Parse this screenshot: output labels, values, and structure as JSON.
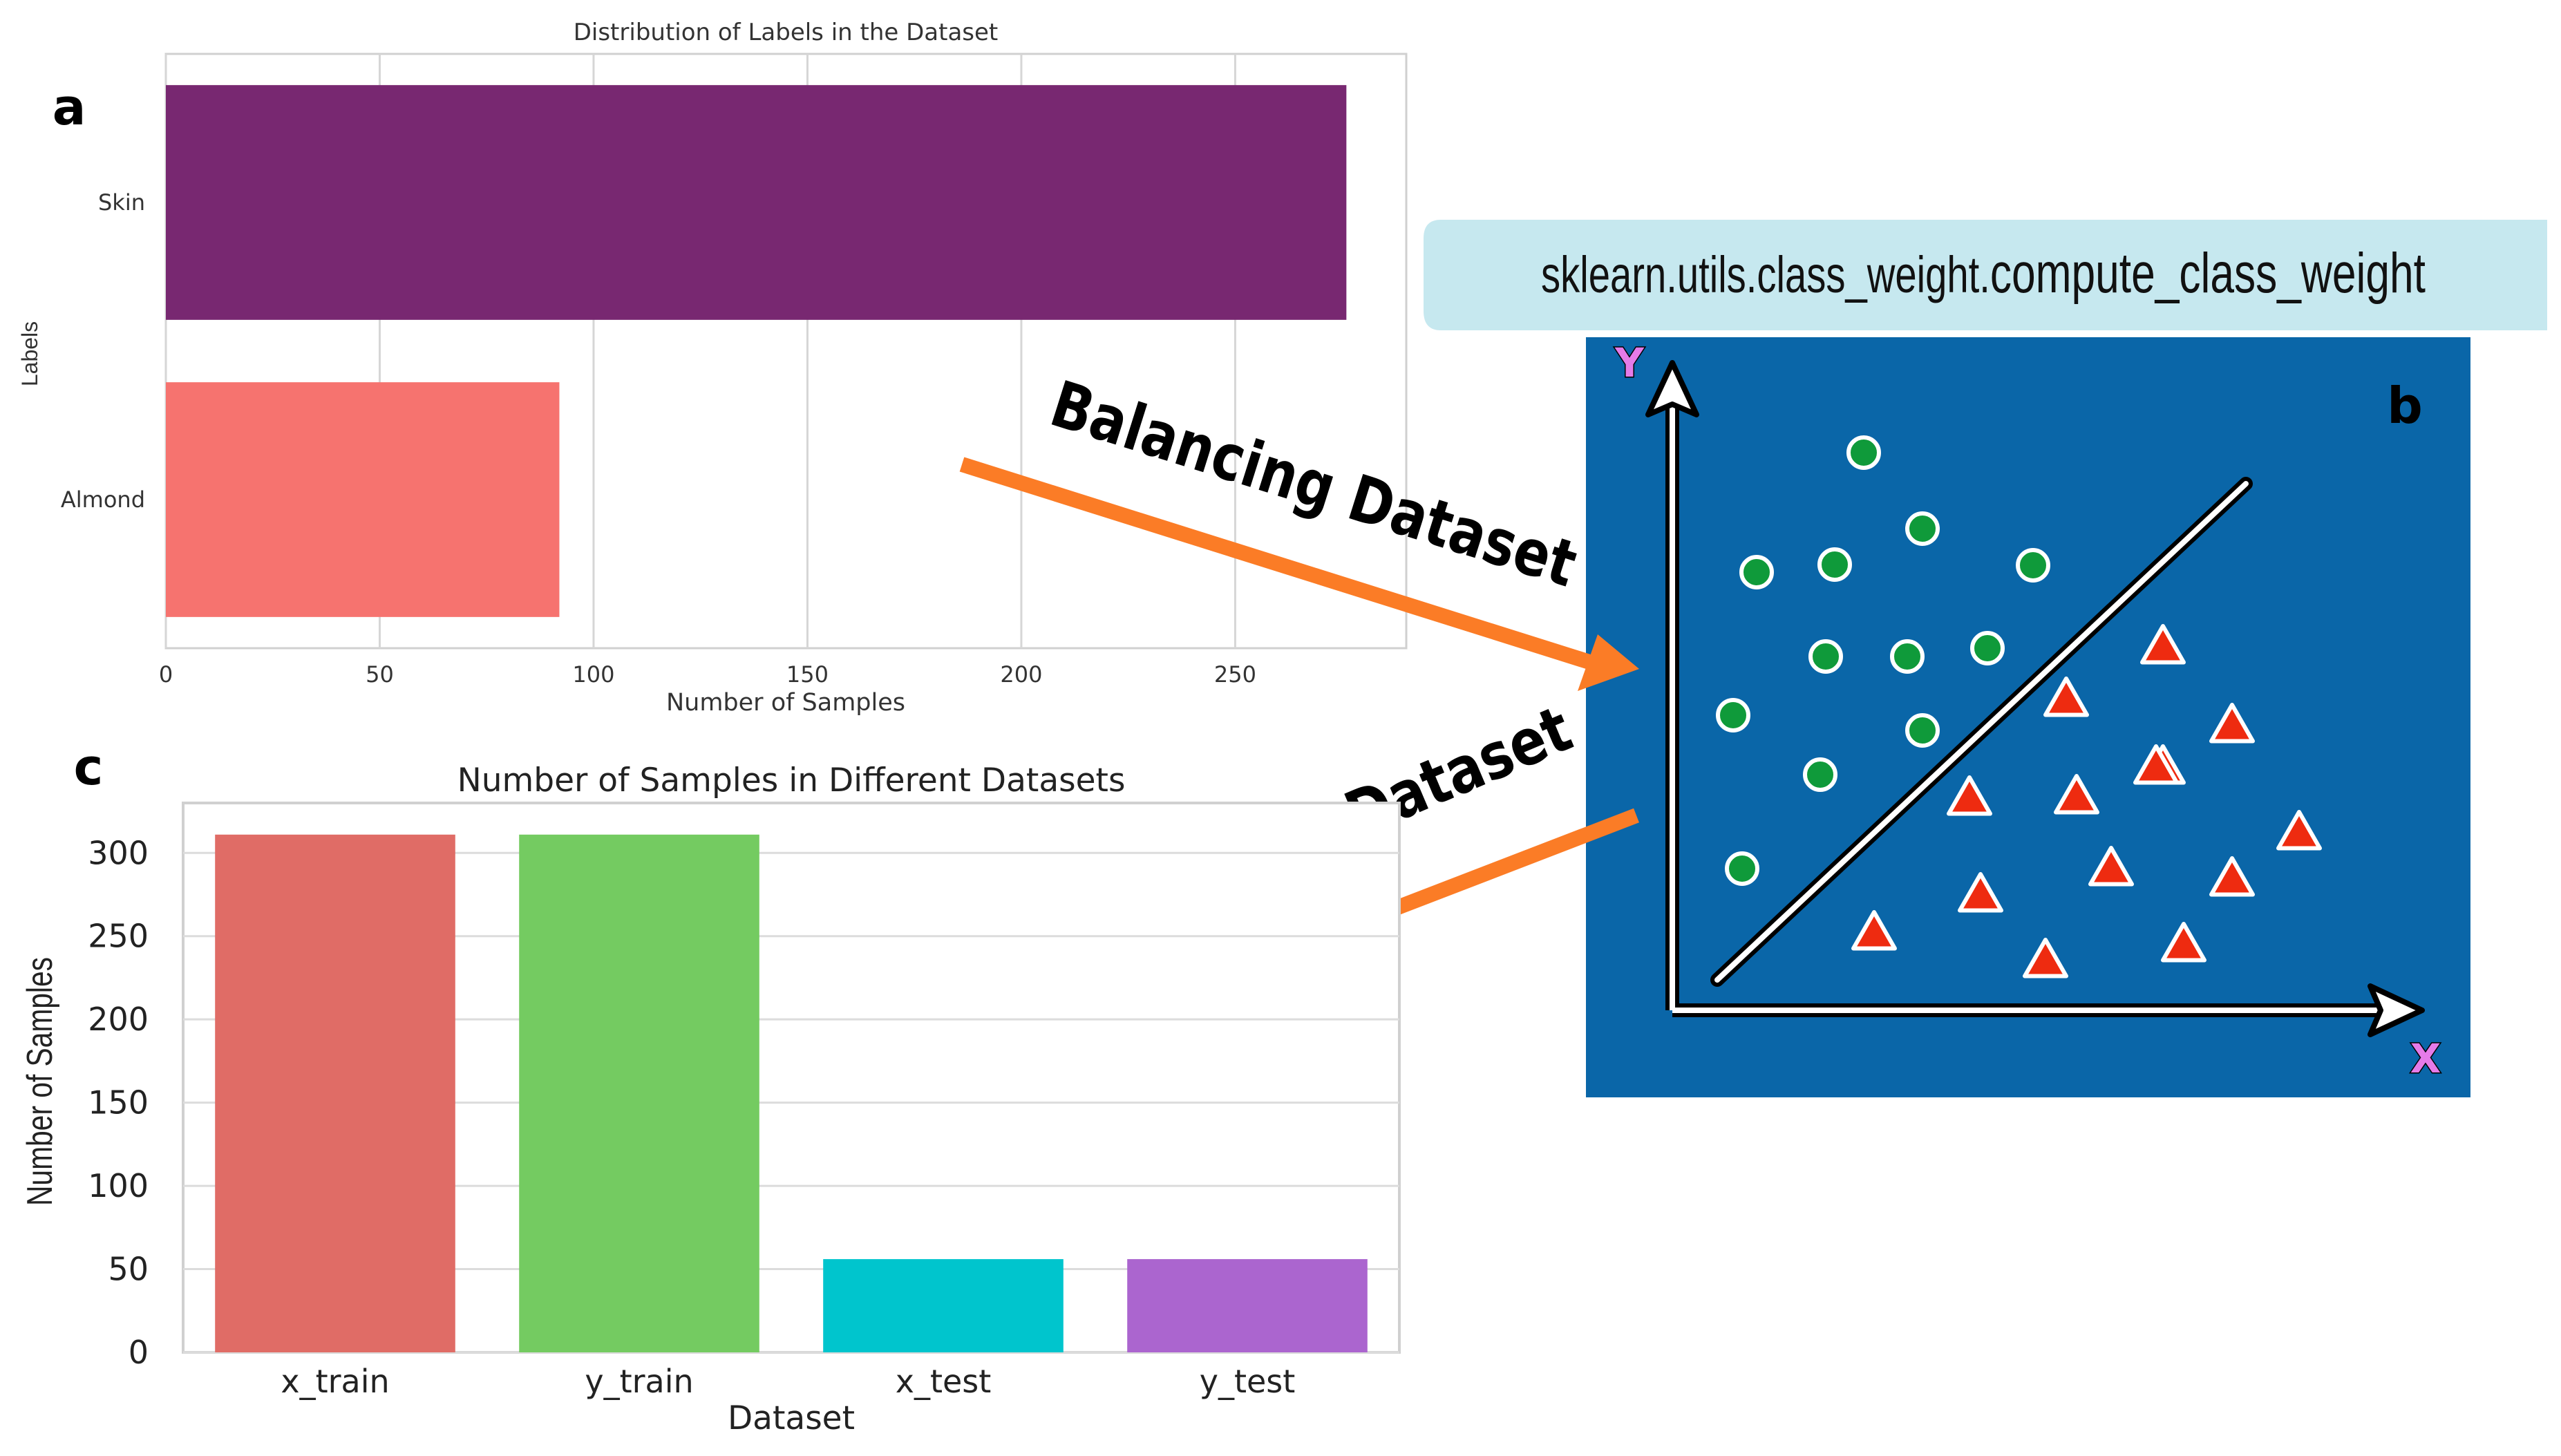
{
  "panel_labels": {
    "a": "a",
    "b": "b",
    "c": "c"
  },
  "banner": {
    "prefix": "sklearn.utils.class_weight.",
    "func": "compute_class_weight",
    "bg_color": "#c6e8ef"
  },
  "arrows": {
    "balancing": "Balancing Dataset",
    "split": "Split Balanced Dataset",
    "color": "#fb7c26"
  },
  "diagram": {
    "bg_color": "#0a66a8",
    "y_label": "Y",
    "x_label": "X",
    "circle_color": "#0f9a3a",
    "triangle_color": "#ee2b10",
    "axis_label_color": "#e57be8"
  },
  "chart_data": [
    {
      "type": "bar",
      "orientation": "horizontal",
      "title": "Distribution of Labels in the Dataset",
      "xlabel": "Number of Samples",
      "ylabel": "Labels",
      "categories": [
        "Skin",
        "Almond"
      ],
      "values": [
        276,
        92
      ],
      "colors": [
        "#782871",
        "#f6736f"
      ],
      "xlim": [
        0,
        290
      ],
      "xticks": [
        0,
        50,
        100,
        150,
        200,
        250
      ],
      "grid": true
    },
    {
      "type": "bar",
      "orientation": "vertical",
      "title": "Number of Samples in Different Datasets",
      "xlabel": "Dataset",
      "ylabel": "Number of Samples",
      "categories": [
        "x_train",
        "y_train",
        "x_test",
        "y_test"
      ],
      "values": [
        311,
        311,
        56,
        56
      ],
      "colors": [
        "#e06c66",
        "#74cb61",
        "#00c5cd",
        "#ab65cf"
      ],
      "ylim": [
        0,
        330
      ],
      "yticks": [
        0,
        50,
        100,
        150,
        200,
        250,
        300
      ],
      "grid": true
    }
  ]
}
